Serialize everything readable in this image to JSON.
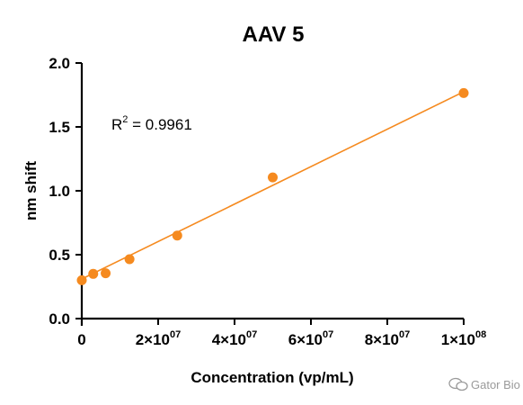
{
  "colors": {
    "series": "#f58a1f",
    "axis": "#000000",
    "watermark": "#9a9a9a"
  },
  "watermark": {
    "text": "Gator Bio",
    "icon": "wechat-icon"
  },
  "chart_data": {
    "type": "scatter",
    "title": "AAV 5",
    "xlabel": "Concentration (vp/mL)",
    "ylabel": "nm shift",
    "xlim": [
      0,
      100000000
    ],
    "ylim": [
      0,
      2.0
    ],
    "grid": false,
    "legend": "none",
    "x_ticks": [
      {
        "value": 0,
        "mantissa": "0",
        "exponent": ""
      },
      {
        "value": 20000000,
        "mantissa": "2×10",
        "exponent": "07"
      },
      {
        "value": 40000000,
        "mantissa": "4×10",
        "exponent": "07"
      },
      {
        "value": 60000000,
        "mantissa": "6×10",
        "exponent": "07"
      },
      {
        "value": 80000000,
        "mantissa": "8×10",
        "exponent": "07"
      },
      {
        "value": 100000000,
        "mantissa": "1×10",
        "exponent": "08"
      }
    ],
    "y_ticks": [
      {
        "value": 0.0,
        "label": "0.0"
      },
      {
        "value": 0.5,
        "label": "0.5"
      },
      {
        "value": 1.0,
        "label": "1.0"
      },
      {
        "value": 1.5,
        "label": "1.5"
      },
      {
        "value": 2.0,
        "label": "2.0"
      }
    ],
    "series": [
      {
        "x": [
          0,
          3000000,
          6250000,
          12500000,
          25000000,
          50000000,
          100000000
        ],
        "y": [
          0.3,
          0.35,
          0.355,
          0.465,
          0.65,
          1.105,
          1.765
        ]
      }
    ],
    "fit_line": {
      "x": [
        0,
        100000000
      ],
      "y": [
        0.31,
        1.775
      ]
    },
    "annotation": {
      "prefix": "R",
      "superscript": "2",
      "suffix": " = 0.9961"
    }
  }
}
